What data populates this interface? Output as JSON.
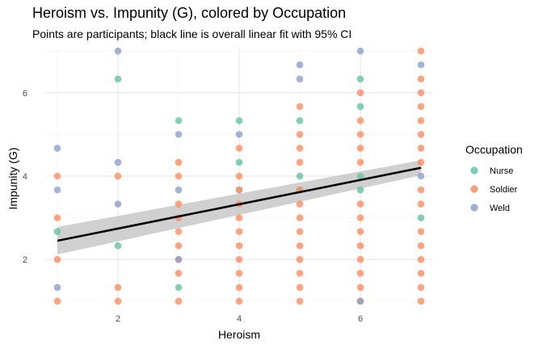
{
  "chart_data": {
    "type": "scatter",
    "title": "Heroism vs. Impunity (G), colored by Occupation",
    "subtitle": "Points are participants; black line is overall linear fit with 95% CI",
    "xlabel": "Heroism",
    "ylabel": "Impunity (G)",
    "xlim": [
      0.8,
      7.2
    ],
    "ylim": [
      0.9,
      7.1
    ],
    "x_ticks": [
      2,
      4,
      6
    ],
    "y_ticks": [
      2,
      4,
      6
    ],
    "grid": true,
    "legend": {
      "title": "Occupation",
      "position": "right",
      "items": [
        {
          "label": "Nurse",
          "color": "#66c2a5"
        },
        {
          "label": "Soldier",
          "color": "#fc8d62"
        },
        {
          "label": "Weld",
          "color": "#8da0cb"
        }
      ]
    },
    "fit": {
      "x": [
        1,
        7
      ],
      "y": [
        2.45,
        4.2
      ],
      "ci_lower": [
        2.12,
        4.02
      ],
      "ci_upper": [
        2.78,
        4.38
      ],
      "line_color": "#000000",
      "band_color": "#c8c8c8"
    },
    "series": [
      {
        "name": "Nurse",
        "color": "#66c2a5",
        "points": [
          [
            1,
            2.67
          ],
          [
            2,
            6.33
          ],
          [
            2,
            2.33
          ],
          [
            3,
            5.33
          ],
          [
            3,
            1.33
          ],
          [
            4,
            5.33
          ],
          [
            4,
            4.33
          ],
          [
            4,
            3.67
          ],
          [
            5,
            5.33
          ],
          [
            5,
            4
          ],
          [
            5,
            3.67
          ],
          [
            6,
            6.33
          ],
          [
            6,
            5.67
          ],
          [
            6,
            4
          ],
          [
            6,
            3.67
          ],
          [
            7,
            3
          ]
        ]
      },
      {
        "name": "Soldier",
        "color": "#fc8d62",
        "points": [
          [
            1,
            4
          ],
          [
            1,
            3
          ],
          [
            1,
            2
          ],
          [
            1,
            1
          ],
          [
            2,
            4
          ],
          [
            2,
            1.33
          ],
          [
            2,
            1
          ],
          [
            3,
            4.33
          ],
          [
            3,
            4
          ],
          [
            3,
            3.33
          ],
          [
            3,
            3
          ],
          [
            3,
            2.67
          ],
          [
            3,
            2.33
          ],
          [
            3,
            2
          ],
          [
            3,
            1.67
          ],
          [
            3,
            1
          ],
          [
            4,
            4.67
          ],
          [
            4,
            4
          ],
          [
            4,
            3.67
          ],
          [
            4,
            3.33
          ],
          [
            4,
            3
          ],
          [
            4,
            2.67
          ],
          [
            4,
            2.33
          ],
          [
            4,
            2
          ],
          [
            4,
            1.67
          ],
          [
            4,
            1.33
          ],
          [
            4,
            1
          ],
          [
            5,
            5.67
          ],
          [
            5,
            5
          ],
          [
            5,
            4.67
          ],
          [
            5,
            4.33
          ],
          [
            5,
            3.67
          ],
          [
            5,
            3.33
          ],
          [
            5,
            3
          ],
          [
            5,
            2.67
          ],
          [
            5,
            2.33
          ],
          [
            5,
            2
          ],
          [
            5,
            1.67
          ],
          [
            5,
            1.33
          ],
          [
            5,
            1
          ],
          [
            6,
            6
          ],
          [
            6,
            5.33
          ],
          [
            6,
            5
          ],
          [
            6,
            4.67
          ],
          [
            6,
            4.33
          ],
          [
            6,
            3.33
          ],
          [
            6,
            3
          ],
          [
            6,
            2.67
          ],
          [
            6,
            2.33
          ],
          [
            6,
            2
          ],
          [
            6,
            1.67
          ],
          [
            6,
            1.33
          ],
          [
            6,
            1
          ],
          [
            7,
            7
          ],
          [
            7,
            6.33
          ],
          [
            7,
            6
          ],
          [
            7,
            5.67
          ],
          [
            7,
            5.33
          ],
          [
            7,
            5
          ],
          [
            7,
            4.67
          ],
          [
            7,
            4.33
          ],
          [
            7,
            3.67
          ],
          [
            7,
            3.33
          ],
          [
            7,
            2.67
          ],
          [
            7,
            2.33
          ],
          [
            7,
            2
          ],
          [
            7,
            1.67
          ],
          [
            7,
            1.33
          ],
          [
            7,
            1
          ]
        ]
      },
      {
        "name": "Weld",
        "color": "#8da0cb",
        "points": [
          [
            1,
            4.67
          ],
          [
            1,
            3.67
          ],
          [
            1,
            1.33
          ],
          [
            2,
            7
          ],
          [
            2,
            4.33
          ],
          [
            2,
            3.33
          ],
          [
            3,
            5
          ],
          [
            3,
            3.67
          ],
          [
            3,
            2
          ],
          [
            4,
            5
          ],
          [
            5,
            6.67
          ],
          [
            5,
            6.33
          ],
          [
            6,
            7
          ],
          [
            6,
            1
          ],
          [
            7,
            6.67
          ],
          [
            7,
            4
          ]
        ]
      }
    ]
  }
}
